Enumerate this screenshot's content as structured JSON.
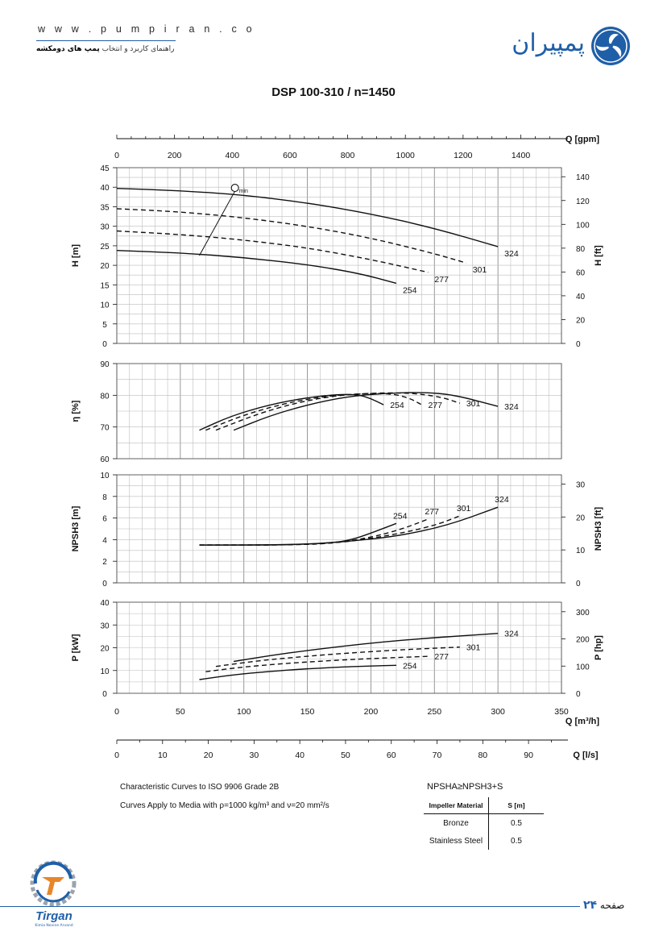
{
  "header": {
    "url": "w w w . p u m p i r a n . c o",
    "subtitle_prefix": "راهنمای کاربرد و انتخاب",
    "subtitle_bold": "پمپ های دومکشه",
    "logo_text": "پمپیران",
    "logo_icon": "pumpiran-swirl-icon"
  },
  "page_title": "DSP 100-310 / n=1450",
  "chart_data": [
    {
      "type": "line",
      "name_panel": "head",
      "ylabel": "H [m]",
      "ylabel_right": "H [ft]",
      "ylim": [
        0,
        45
      ],
      "yticks": [
        0,
        5,
        10,
        15,
        20,
        25,
        30,
        35,
        40,
        45
      ],
      "ylim_right": [
        0,
        147.6
      ],
      "yticks_right": [
        0,
        20,
        40,
        60,
        80,
        100,
        120,
        140
      ],
      "xlim": [
        0,
        350
      ],
      "grid": true,
      "qmin_label": "Q",
      "qmin_sub": "min",
      "qmin_line": [
        [
          65,
          22.5
        ],
        [
          93,
          39
        ]
      ],
      "series": [
        {
          "name": "324",
          "style": "solid",
          "x": [
            0,
            50,
            100,
            150,
            200,
            250,
            300
          ],
          "y": [
            39.7,
            39.1,
            38.0,
            36.0,
            33.2,
            29.5,
            24.8
          ]
        },
        {
          "name": "301",
          "style": "dashed",
          "x": [
            0,
            50,
            100,
            150,
            200,
            250,
            275
          ],
          "y": [
            34.5,
            33.7,
            32.2,
            30.0,
            27.0,
            23.0,
            20.6
          ]
        },
        {
          "name": "277",
          "style": "dashed",
          "x": [
            0,
            50,
            100,
            150,
            200,
            245
          ],
          "y": [
            28.8,
            27.9,
            26.5,
            24.5,
            21.5,
            18.2
          ]
        },
        {
          "name": "254",
          "style": "solid",
          "x": [
            0,
            50,
            100,
            150,
            190,
            220
          ],
          "y": [
            23.8,
            23.2,
            22.0,
            20.2,
            18.0,
            15.4
          ]
        }
      ]
    },
    {
      "type": "line",
      "name_panel": "efficiency",
      "ylabel": "η [%]",
      "ylim": [
        60,
        90
      ],
      "yticks": [
        60,
        70,
        80,
        90
      ],
      "xlim": [
        0,
        350
      ],
      "grid": true,
      "series": [
        {
          "name": "254",
          "style": "solid",
          "x": [
            65,
            90,
            120,
            150,
            175,
            190,
            200,
            210
          ],
          "y": [
            69,
            73.5,
            77,
            79.3,
            80.3,
            80.2,
            79,
            77
          ]
        },
        {
          "name": "277",
          "style": "dashed",
          "x": [
            70,
            100,
            130,
            160,
            190,
            215,
            230,
            240
          ],
          "y": [
            69,
            73.8,
            77.2,
            79.5,
            80.5,
            80.6,
            79.2,
            77
          ]
        },
        {
          "name": "301",
          "style": "dashed",
          "x": [
            78,
            110,
            140,
            170,
            200,
            230,
            255,
            270
          ],
          "y": [
            69,
            74,
            77.5,
            79.8,
            80.7,
            80.8,
            79.5,
            77.5
          ]
        },
        {
          "name": "324",
          "style": "solid",
          "x": [
            92,
            120,
            150,
            180,
            210,
            240,
            265,
            300
          ],
          "y": [
            69,
            73.5,
            77,
            79.5,
            80.6,
            81,
            80.2,
            76.5
          ]
        }
      ]
    },
    {
      "type": "line",
      "name_panel": "npsh",
      "ylabel": "NPSH3 [m]",
      "ylabel_right": "NPSH3 [ft]",
      "ylim": [
        0,
        10
      ],
      "yticks": [
        0,
        2,
        4,
        6,
        8,
        10
      ],
      "ylim_right": [
        0,
        32.8
      ],
      "yticks_right": [
        0,
        10,
        20,
        30
      ],
      "xlim": [
        0,
        350
      ],
      "grid": true,
      "series": [
        {
          "name": "254",
          "style": "solid",
          "x": [
            65,
            100,
            140,
            170,
            185,
            200,
            220
          ],
          "y": [
            3.5,
            3.5,
            3.55,
            3.7,
            4.0,
            4.6,
            5.5
          ]
        },
        {
          "name": "277",
          "style": "dashed",
          "x": [
            65,
            100,
            140,
            170,
            200,
            225,
            245
          ],
          "y": [
            3.5,
            3.5,
            3.52,
            3.65,
            4.2,
            5.0,
            5.9
          ]
        },
        {
          "name": "301",
          "style": "dashed",
          "x": [
            65,
            100,
            140,
            180,
            220,
            250,
            270
          ],
          "y": [
            3.5,
            3.5,
            3.52,
            3.75,
            4.5,
            5.3,
            6.2
          ]
        },
        {
          "name": "324",
          "style": "solid",
          "x": [
            65,
            100,
            140,
            180,
            220,
            260,
            300
          ],
          "y": [
            3.5,
            3.5,
            3.52,
            3.8,
            4.3,
            5.3,
            7.0
          ]
        }
      ]
    },
    {
      "type": "line",
      "name_panel": "power",
      "ylabel": "P [kW]",
      "ylabel_right": "P [hp]",
      "ylim": [
        0,
        40
      ],
      "yticks": [
        0,
        10,
        20,
        30,
        40
      ],
      "ylim_right": [
        0,
        335
      ],
      "yticks_right": [
        0,
        100,
        200,
        300
      ],
      "xlim": [
        0,
        350
      ],
      "xticks": [
        0,
        50,
        100,
        150,
        200,
        250,
        300,
        350
      ],
      "xlabel": "Q [m³/h]",
      "grid": true,
      "series": [
        {
          "name": "324",
          "style": "solid",
          "x": [
            92,
            120,
            150,
            180,
            210,
            240,
            270,
            300
          ],
          "y": [
            14,
            16.5,
            18.8,
            20.8,
            22.6,
            24.0,
            25.2,
            26.3
          ]
        },
        {
          "name": "301",
          "style": "dashed",
          "x": [
            78,
            110,
            140,
            170,
            200,
            230,
            270
          ],
          "y": [
            11.8,
            14.2,
            15.8,
            17.2,
            18.3,
            19.3,
            20.3
          ]
        },
        {
          "name": "277",
          "style": "dashed",
          "x": [
            70,
            100,
            130,
            160,
            190,
            215,
            245
          ],
          "y": [
            9.5,
            11.6,
            13.0,
            14.1,
            15.0,
            15.6,
            16.2
          ]
        },
        {
          "name": "254",
          "style": "solid",
          "x": [
            65,
            90,
            120,
            150,
            180,
            200,
            220
          ],
          "y": [
            6.0,
            8.0,
            9.6,
            10.8,
            11.6,
            12.0,
            12.3
          ]
        }
      ]
    }
  ],
  "axes": {
    "gpm_label": "Q [gpm]",
    "gpm_ticks": [
      0,
      200,
      400,
      600,
      800,
      1000,
      1200,
      1400
    ],
    "gpm_max": 1541,
    "ls_label": "Q [l/s]",
    "ls_ticks": [
      0,
      10,
      20,
      30,
      40,
      50,
      60,
      70,
      80,
      90
    ],
    "ls_max": 97.2
  },
  "notes": {
    "line1": "Characteristic Curves to ISO 9906 Grade 2B",
    "line2_prefix": "Curves Apply to Media with",
    "line2_rho": "ρ=1000 kg/m³ and ν=20 mm²/s"
  },
  "npsh_note": "NPSHA≥NPSH3+S",
  "material_table": {
    "headers": [
      "Impeller Material",
      "S [m]"
    ],
    "rows": [
      [
        "Bronze",
        "0.5"
      ],
      [
        "Stainless Steel",
        "0.5"
      ]
    ]
  },
  "footer": {
    "brand": "Tirgan",
    "tagline": "Kimia Novine Arvand",
    "page_label": "صفحه",
    "page_number": "۲۴"
  },
  "colors": {
    "brand_blue": "#1f5fa8",
    "curve": "#111111",
    "grid": "#b4b4b4"
  }
}
